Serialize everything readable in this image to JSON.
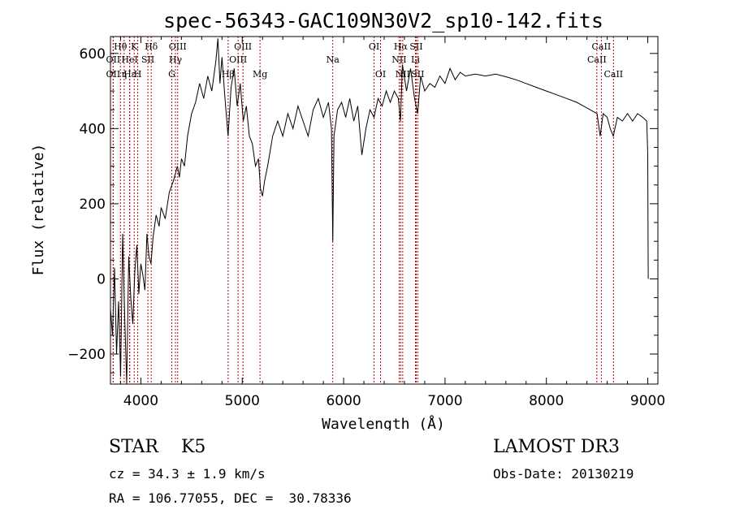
{
  "chart_data": {
    "type": "line",
    "title": "spec-56343-GAC109N30V2_sp10-142.fits",
    "xlabel": "Wavelength (Å)",
    "ylabel": "Flux (relative)",
    "xlim": [
      3700,
      9100
    ],
    "ylim": [
      -280,
      645
    ],
    "xticks": [
      4000,
      5000,
      6000,
      7000,
      8000,
      9000
    ],
    "yticks": [
      -200,
      0,
      200,
      400,
      600
    ],
    "x_tick_labels": [
      "4000",
      "5000",
      "6000",
      "7000",
      "8000",
      "9000"
    ],
    "y_tick_labels": [
      "−200",
      "0",
      "200",
      "400",
      "600"
    ],
    "series": [
      {
        "name": "flux",
        "points": [
          [
            3700,
            -80
          ],
          [
            3720,
            -150
          ],
          [
            3740,
            30
          ],
          [
            3760,
            -200
          ],
          [
            3780,
            -60
          ],
          [
            3800,
            -260
          ],
          [
            3820,
            120
          ],
          [
            3840,
            -100
          ],
          [
            3860,
            -280
          ],
          [
            3880,
            60
          ],
          [
            3900,
            -50
          ],
          [
            3920,
            -120
          ],
          [
            3940,
            20
          ],
          [
            3960,
            90
          ],
          [
            3980,
            -40
          ],
          [
            4000,
            40
          ],
          [
            4020,
            10
          ],
          [
            4040,
            -30
          ],
          [
            4060,
            120
          ],
          [
            4080,
            60
          ],
          [
            4100,
            40
          ],
          [
            4120,
            110
          ],
          [
            4150,
            170
          ],
          [
            4180,
            140
          ],
          [
            4200,
            190
          ],
          [
            4240,
            160
          ],
          [
            4280,
            230
          ],
          [
            4320,
            260
          ],
          [
            4360,
            300
          ],
          [
            4380,
            270
          ],
          [
            4400,
            320
          ],
          [
            4430,
            300
          ],
          [
            4460,
            380
          ],
          [
            4500,
            440
          ],
          [
            4540,
            470
          ],
          [
            4580,
            520
          ],
          [
            4620,
            480
          ],
          [
            4660,
            540
          ],
          [
            4700,
            500
          ],
          [
            4740,
            580
          ],
          [
            4760,
            640
          ],
          [
            4780,
            520
          ],
          [
            4800,
            590
          ],
          [
            4830,
            480
          ],
          [
            4860,
            380
          ],
          [
            4890,
            510
          ],
          [
            4920,
            560
          ],
          [
            4950,
            460
          ],
          [
            4980,
            520
          ],
          [
            5010,
            420
          ],
          [
            5040,
            460
          ],
          [
            5070,
            380
          ],
          [
            5100,
            360
          ],
          [
            5130,
            300
          ],
          [
            5160,
            320
          ],
          [
            5180,
            240
          ],
          [
            5200,
            220
          ],
          [
            5220,
            260
          ],
          [
            5250,
            300
          ],
          [
            5300,
            380
          ],
          [
            5350,
            420
          ],
          [
            5400,
            380
          ],
          [
            5450,
            440
          ],
          [
            5500,
            400
          ],
          [
            5550,
            460
          ],
          [
            5600,
            420
          ],
          [
            5650,
            380
          ],
          [
            5700,
            450
          ],
          [
            5750,
            480
          ],
          [
            5800,
            430
          ],
          [
            5850,
            470
          ],
          [
            5880,
            400
          ],
          [
            5893,
            100
          ],
          [
            5905,
            380
          ],
          [
            5940,
            450
          ],
          [
            5980,
            470
          ],
          [
            6020,
            430
          ],
          [
            6060,
            480
          ],
          [
            6100,
            420
          ],
          [
            6140,
            460
          ],
          [
            6180,
            330
          ],
          [
            6220,
            400
          ],
          [
            6260,
            450
          ],
          [
            6300,
            430
          ],
          [
            6340,
            480
          ],
          [
            6380,
            460
          ],
          [
            6420,
            500
          ],
          [
            6460,
            470
          ],
          [
            6500,
            500
          ],
          [
            6540,
            480
          ],
          [
            6560,
            420
          ],
          [
            6580,
            570
          ],
          [
            6620,
            500
          ],
          [
            6660,
            560
          ],
          [
            6700,
            480
          ],
          [
            6730,
            440
          ],
          [
            6760,
            540
          ],
          [
            6800,
            500
          ],
          [
            6850,
            520
          ],
          [
            6900,
            510
          ],
          [
            6950,
            540
          ],
          [
            7000,
            520
          ],
          [
            7050,
            560
          ],
          [
            7100,
            530
          ],
          [
            7150,
            550
          ],
          [
            7200,
            540
          ],
          [
            7300,
            545
          ],
          [
            7400,
            540
          ],
          [
            7500,
            545
          ],
          [
            7600,
            538
          ],
          [
            7700,
            530
          ],
          [
            7800,
            520
          ],
          [
            7900,
            510
          ],
          [
            8000,
            500
          ],
          [
            8100,
            490
          ],
          [
            8200,
            480
          ],
          [
            8300,
            470
          ],
          [
            8400,
            455
          ],
          [
            8500,
            440
          ],
          [
            8530,
            380
          ],
          [
            8560,
            440
          ],
          [
            8600,
            430
          ],
          [
            8630,
            400
          ],
          [
            8660,
            380
          ],
          [
            8700,
            430
          ],
          [
            8750,
            420
          ],
          [
            8800,
            440
          ],
          [
            8850,
            420
          ],
          [
            8900,
            440
          ],
          [
            8950,
            430
          ],
          [
            8990,
            420
          ],
          [
            9000,
            330
          ],
          [
            9003,
            100
          ],
          [
            9005,
            0
          ]
        ]
      }
    ],
    "lines": [
      {
        "label": "Hθ",
        "wave": 3798,
        "row": 1
      },
      {
        "label": "OII",
        "wave": 3727,
        "row": 2
      },
      {
        "label": "OII",
        "wave": 3727,
        "row": 3
      },
      {
        "label": "K",
        "wave": 3934,
        "row": 1
      },
      {
        "label": "Hδ",
        "wave": 4102,
        "row": 1
      },
      {
        "label": "HeI",
        "wave": 3889,
        "row": 2
      },
      {
        "label": "SII",
        "wave": 4069,
        "row": 2
      },
      {
        "label": "Hε",
        "wave": 3890,
        "row": 3
      },
      {
        "label": "η",
        "wave": 3835,
        "row": 3
      },
      {
        "label": "H",
        "wave": 3969,
        "row": 3
      },
      {
        "label": "OIII",
        "wave": 4363,
        "row": 1
      },
      {
        "label": "Hγ",
        "wave": 4341,
        "row": 2
      },
      {
        "label": "G",
        "wave": 4305,
        "row": 3
      },
      {
        "label": "OIII",
        "wave": 5007,
        "row": 1
      },
      {
        "label": "OIII",
        "wave": 4959,
        "row": 2
      },
      {
        "label": "Hβ",
        "wave": 4861,
        "row": 3
      },
      {
        "label": "Mg",
        "wave": 5175,
        "row": 3
      },
      {
        "label": "Na",
        "wave": 5893,
        "row": 2
      },
      {
        "label": "OI",
        "wave": 6300,
        "row": 1
      },
      {
        "label": "OI",
        "wave": 6364,
        "row": 3
      },
      {
        "label": "Hα",
        "wave": 6563,
        "row": 1
      },
      {
        "label": "SII",
        "wave": 6716,
        "row": 1
      },
      {
        "label": "NII",
        "wave": 6548,
        "row": 2
      },
      {
        "label": "Li",
        "wave": 6708,
        "row": 2
      },
      {
        "label": "NII",
        "wave": 6583,
        "row": 3
      },
      {
        "label": "SII",
        "wave": 6731,
        "row": 3
      },
      {
        "label": "CaII",
        "wave": 8542,
        "row": 1
      },
      {
        "label": "CaII",
        "wave": 8498,
        "row": 2
      },
      {
        "label": "CaII",
        "wave": 8662,
        "row": 3
      }
    ]
  },
  "info": {
    "class_line": "STAR    K5",
    "survey": "LAMOST DR3",
    "cz_line": "cz = 34.3 ± 1.9 km/s",
    "obs_date": "Obs-Date: 20130219",
    "radec": "RA = 106.77055, DEC =  30.78336"
  }
}
